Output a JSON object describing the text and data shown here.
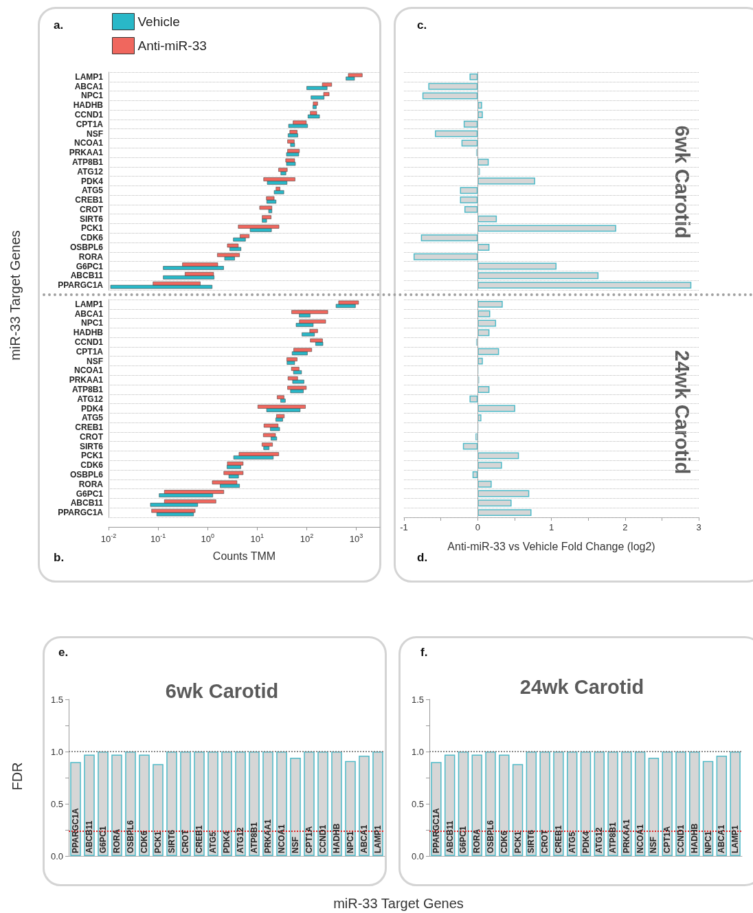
{
  "chart_data": [
    {
      "type": "bar",
      "orientation": "horizontal",
      "log": "x",
      "ylabel": "miR-33 Target Genes",
      "legend": "top left",
      "grid": "y",
      "tick_labels": "y",
      "annotations": [
        "a."
      ],
      "categories": [
        "LAMP1",
        "ABCA1",
        "NPC1",
        "HADHB",
        "CCND1",
        "CPT1A",
        "NSF",
        "NCOA1",
        "PRKAA1",
        "ATP8B1",
        "ATG12",
        "PDK4",
        "ATG5",
        "CREB1",
        "CROT",
        "SIRT6",
        "PCK1",
        "CDK6",
        "OSBPL6",
        "RORA",
        "G6PC1",
        "ABCB11",
        "PPARGC1A"
      ],
      "xlim": [
        0.01,
        3000
      ],
      "series": [
        {
          "name": "Vehicle",
          "color": "#29b8c8",
          "base": [
            620,
            100,
            122,
            133,
            106,
            43,
            42,
            47,
            39,
            39,
            30,
            16,
            22,
            15.6,
            17,
            12.6,
            7.2,
            3.3,
            2.8,
            2.2,
            0.127,
            0.127,
            0.011
          ],
          "values": [
            300,
            158,
            102,
            23,
            75,
            61,
            24,
            10,
            30,
            20,
            8,
            24,
            12.5,
            8.4,
            2.8,
            2.9,
            12.2,
            2.5,
            1.9,
            1.3,
            1.973,
            1.223,
            1.219
          ]
        },
        {
          "name": "Anti-miR-33",
          "color": "#f0675e",
          "base": [
            690,
            206,
            219,
            135,
            118,
            53,
            45.5,
            41,
            41,
            37.6,
            27,
            13.5,
            24,
            15.3,
            11.2,
            12.6,
            4.15,
            4.5,
            2.5,
            1.57,
            0.31,
            0.35,
            0.079
          ],
          "values": [
            630,
            113,
            64,
            31,
            41,
            45,
            18.5,
            15,
            30,
            19.4,
            13.5,
            44.5,
            4.8,
            6.7,
            8.6,
            6.5,
            23.35,
            2.4,
            1.65,
            2.83,
            1.29,
            0.97,
            0.631
          ]
        }
      ]
    },
    {
      "type": "bar",
      "orientation": "horizontal",
      "log": "x",
      "xlabel": "Counts TMM",
      "grid": "y",
      "annotations": [
        "b."
      ],
      "categories": [
        "LAMP1",
        "ABCA1",
        "NPC1",
        "HADHB",
        "CCND1",
        "CPT1A",
        "NSF",
        "NCOA1",
        "PRKAA1",
        "ATP8B1",
        "ATG12",
        "PDK4",
        "ATG5",
        "CREB1",
        "CROT",
        "SIRT6",
        "PCK1",
        "CDK6",
        "OSBPL6",
        "RORA",
        "G6PC1",
        "ABCB11",
        "PPARGC1A"
      ],
      "xlim": [
        0.01,
        3000
      ],
      "xticks": [
        {
          "value": 0.01,
          "label": "10$^{-2}$"
        },
        {
          "value": 0.1,
          "label": "10$^{-1}$"
        },
        {
          "value": 1,
          "label": "10$^{0}$"
        },
        {
          "value": 10,
          "label": "10$^{1}$"
        },
        {
          "value": 100,
          "label": "10$^{2}$"
        },
        {
          "value": 1000,
          "label": "10$^{3}$"
        }
      ],
      "series": [
        {
          "color": "#29b8c8",
          "base": [
            390,
            70.6,
            61,
            80,
            151,
            50.7,
            40,
            54,
            51.8,
            47,
            29.7,
            15.5,
            23.7,
            18.4,
            19,
            13.5,
            3.35,
            2.46,
            2.68,
            1.79,
            0.105,
            0.07,
            0.094
          ],
          "values": [
            570,
            46.4,
            74,
            63,
            61,
            52.3,
            17,
            24.5,
            36.2,
            38.5,
            7.3,
            58.1,
            9,
            10,
            5.8,
            3.9,
            17.75,
            2.21,
            1.52,
            2.61,
            1.165,
            0.56,
            0.426
          ]
        },
        {
          "color": "#f0675e",
          "base": [
            440,
            49.6,
            71,
            115,
            118,
            54.6,
            39.6,
            49,
            41.8,
            41,
            25.3,
            10.3,
            24.5,
            13.7,
            13.3,
            12.5,
            4.3,
            2.5,
            2.12,
            1.24,
            0.134,
            0.134,
            0.074
          ],
          "values": [
            670,
            216.4,
            170,
            51,
            90,
            71.4,
            24.4,
            21,
            23.7,
            57,
            9.5,
            83.7,
            10.7,
            12.7,
            10.1,
            7.9,
            22.9,
            2.7,
            3.08,
            2.66,
            1.986,
            1.336,
            0.486
          ]
        }
      ]
    },
    {
      "type": "bar",
      "orientation": "horizontal",
      "title": "6wk Carotid",
      "grid": "y",
      "tick_labels": false,
      "annotations": [
        "c."
      ],
      "categories": [
        null,
        null,
        null,
        null,
        null,
        null,
        null,
        null,
        null,
        null,
        null,
        null,
        null,
        null,
        null,
        null,
        null,
        null,
        null,
        null,
        null,
        null,
        null
      ],
      "xlim": [
        -1,
        3
      ],
      "color": "#d6d6d6",
      "values": [
        -0.11,
        -0.67,
        -0.75,
        0.06,
        0.07,
        -0.19,
        -0.58,
        -0.22,
        -0.02,
        0.15,
        0.03,
        0.78,
        -0.24,
        -0.24,
        -0.18,
        0.26,
        1.88,
        -0.77,
        0.16,
        -0.87,
        1.07,
        1.64,
        2.9
      ]
    },
    {
      "type": "bar",
      "orientation": "horizontal",
      "title": "24wk Carotid",
      "xlabel": "Anti-miR-33 vs Vehicle Fold Change (log2)",
      "grid": "y",
      "tick_labels": "x",
      "annotations": [
        "d."
      ],
      "categories": [
        null,
        null,
        null,
        null,
        null,
        null,
        null,
        null,
        null,
        null,
        null,
        null,
        null,
        null,
        null,
        null,
        null,
        null,
        null,
        null,
        null,
        null,
        null
      ],
      "xlim": [
        -1,
        3
      ],
      "xticks": [
        -1,
        {
          "value": -0.5,
          "label": null
        },
        0,
        {
          "value": 0.5,
          "label": null
        },
        1,
        {
          "value": 1.5,
          "label": null
        },
        2,
        {
          "value": 2.5,
          "label": null
        },
        3
      ],
      "color": "#d6d6d6",
      "values": [
        0.34,
        0.17,
        0.25,
        0.16,
        -0.02,
        0.29,
        0.07,
        0.01,
        0.02,
        0.16,
        -0.11,
        0.51,
        0.05,
        0.01,
        -0.03,
        -0.2,
        0.56,
        0.33,
        -0.07,
        0.19,
        0.7,
        0.46,
        0.73
      ]
    },
    {
      "type": "bar",
      "title": "6wk Carotid",
      "ylabel": "FDR",
      "xlabel": "miR-33 Target Genes",
      "annotations": [
        "e."
      ],
      "categories": [
        "PPARGC1A",
        "ABCB11",
        "G6PC1",
        "RORA",
        "OSBPL6",
        "CDK6",
        "PCK1",
        "SIRT6",
        "CROT",
        "CREB1",
        "ATG5",
        "PDK4",
        "ATG12",
        "ATP8B1",
        "PRKAA1",
        "NCOA1",
        "NSF",
        "CPT1A",
        "CCND1",
        "HADHB",
        "NPC1",
        "ABCA1",
        "LAMP1"
      ],
      "ylim": [
        0,
        1.5
      ],
      "yticks": [
        {
          "value": 0,
          "label": "0.0"
        },
        {
          "value": 0.25,
          "label": null
        },
        {
          "value": 0.5,
          "label": "0.5"
        },
        {
          "value": 0.75,
          "label": null
        },
        {
          "value": 1,
          "label": "1.0"
        },
        {
          "value": 1.25,
          "label": null
        },
        {
          "value": 1.5,
          "label": "1.5"
        }
      ],
      "color": "#d6d6d6",
      "values": [
        0.9,
        0.97,
        1.0,
        0.97,
        1.0,
        0.97,
        0.88,
        1.0,
        1.0,
        1.0,
        1.0,
        1.0,
        1.0,
        1.0,
        1.0,
        1.0,
        0.94,
        1.0,
        1.0,
        1.0,
        0.91,
        0.96,
        1.0
      ],
      "ref_lines": [
        {
          "axis": "y",
          "value": 1,
          "color": "#888888",
          "line_style": "dotted"
        },
        {
          "axis": "y",
          "value": 0.24,
          "color": "#e02020",
          "line_style": "dotted"
        }
      ]
    },
    {
      "type": "bar",
      "title": "24wk Carotid",
      "annotations": [
        "f."
      ],
      "categories": [
        "PPARGC1A",
        "ABCB11",
        "G6PC1",
        "RORA",
        "OSBPL6",
        "CDK6",
        "PCK1",
        "SIRT6",
        "CROT",
        "CREB1",
        "ATG5",
        "PDK4",
        "ATG12",
        "ATP8B1",
        "PRKAA1",
        "NCOA1",
        "NSF",
        "CPT1A",
        "CCND1",
        "HADHB",
        "NPC1",
        "ABCA1",
        "LAMP1"
      ],
      "ylim": [
        0,
        1.5
      ],
      "yticks": [
        {
          "value": 0,
          "label": "0.0"
        },
        {
          "value": 0.25,
          "label": null
        },
        {
          "value": 0.5,
          "label": "0.5"
        },
        {
          "value": 0.75,
          "label": null
        },
        {
          "value": 1,
          "label": "1.0"
        },
        {
          "value": 1.25,
          "label": null
        },
        {
          "value": 1.5,
          "label": "1.5"
        }
      ],
      "color": "#d6d6d6",
      "values": [
        0.9,
        0.97,
        1.0,
        0.97,
        1.0,
        0.97,
        0.88,
        1.0,
        1.0,
        1.0,
        1.0,
        1.0,
        1.0,
        1.0,
        1.0,
        1.0,
        0.94,
        1.0,
        1.0,
        1.0,
        0.91,
        0.96,
        1.0
      ],
      "ref_lines": [
        {
          "axis": "y",
          "value": 1,
          "color": "#888888",
          "line_style": "dotted"
        },
        {
          "axis": "y",
          "value": 0.24,
          "color": "#e02020",
          "line_style": "dotted"
        }
      ]
    }
  ]
}
